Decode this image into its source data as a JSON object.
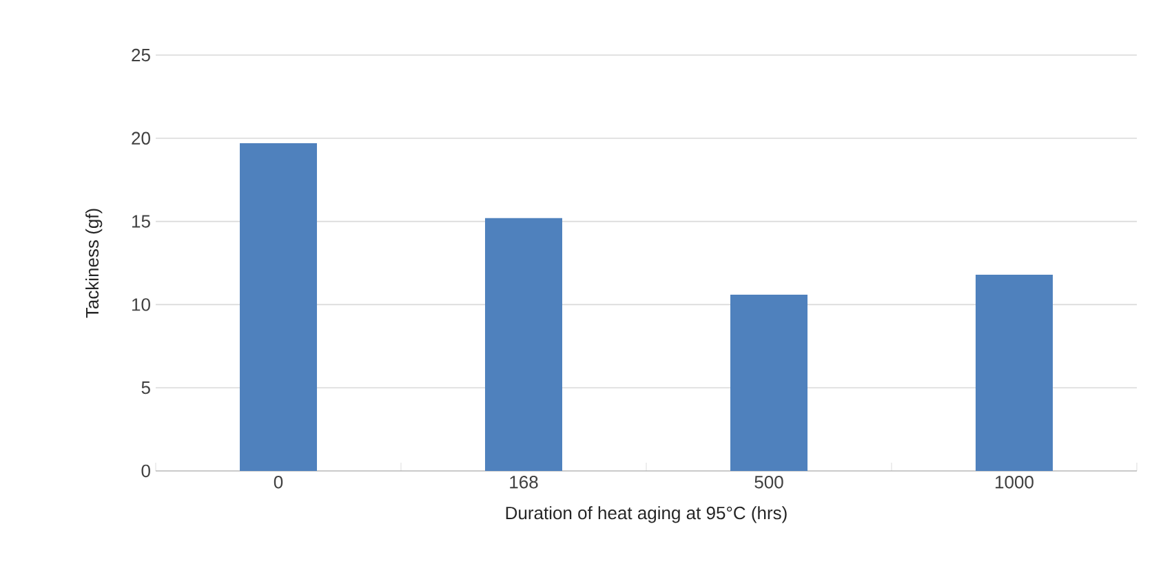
{
  "chart_data": {
    "type": "bar",
    "xlabel": "Duration of heat aging at 95°C (hrs)",
    "ylabel": "Tackiness (gf)",
    "categories": [
      "0",
      "168",
      "500",
      "1000"
    ],
    "values": [
      19.7,
      15.2,
      10.6,
      11.8
    ],
    "color": "#4f81bd",
    "ylim": [
      0,
      25
    ],
    "yticks": [
      0,
      5,
      10,
      15,
      20,
      25
    ],
    "grid": "y"
  }
}
